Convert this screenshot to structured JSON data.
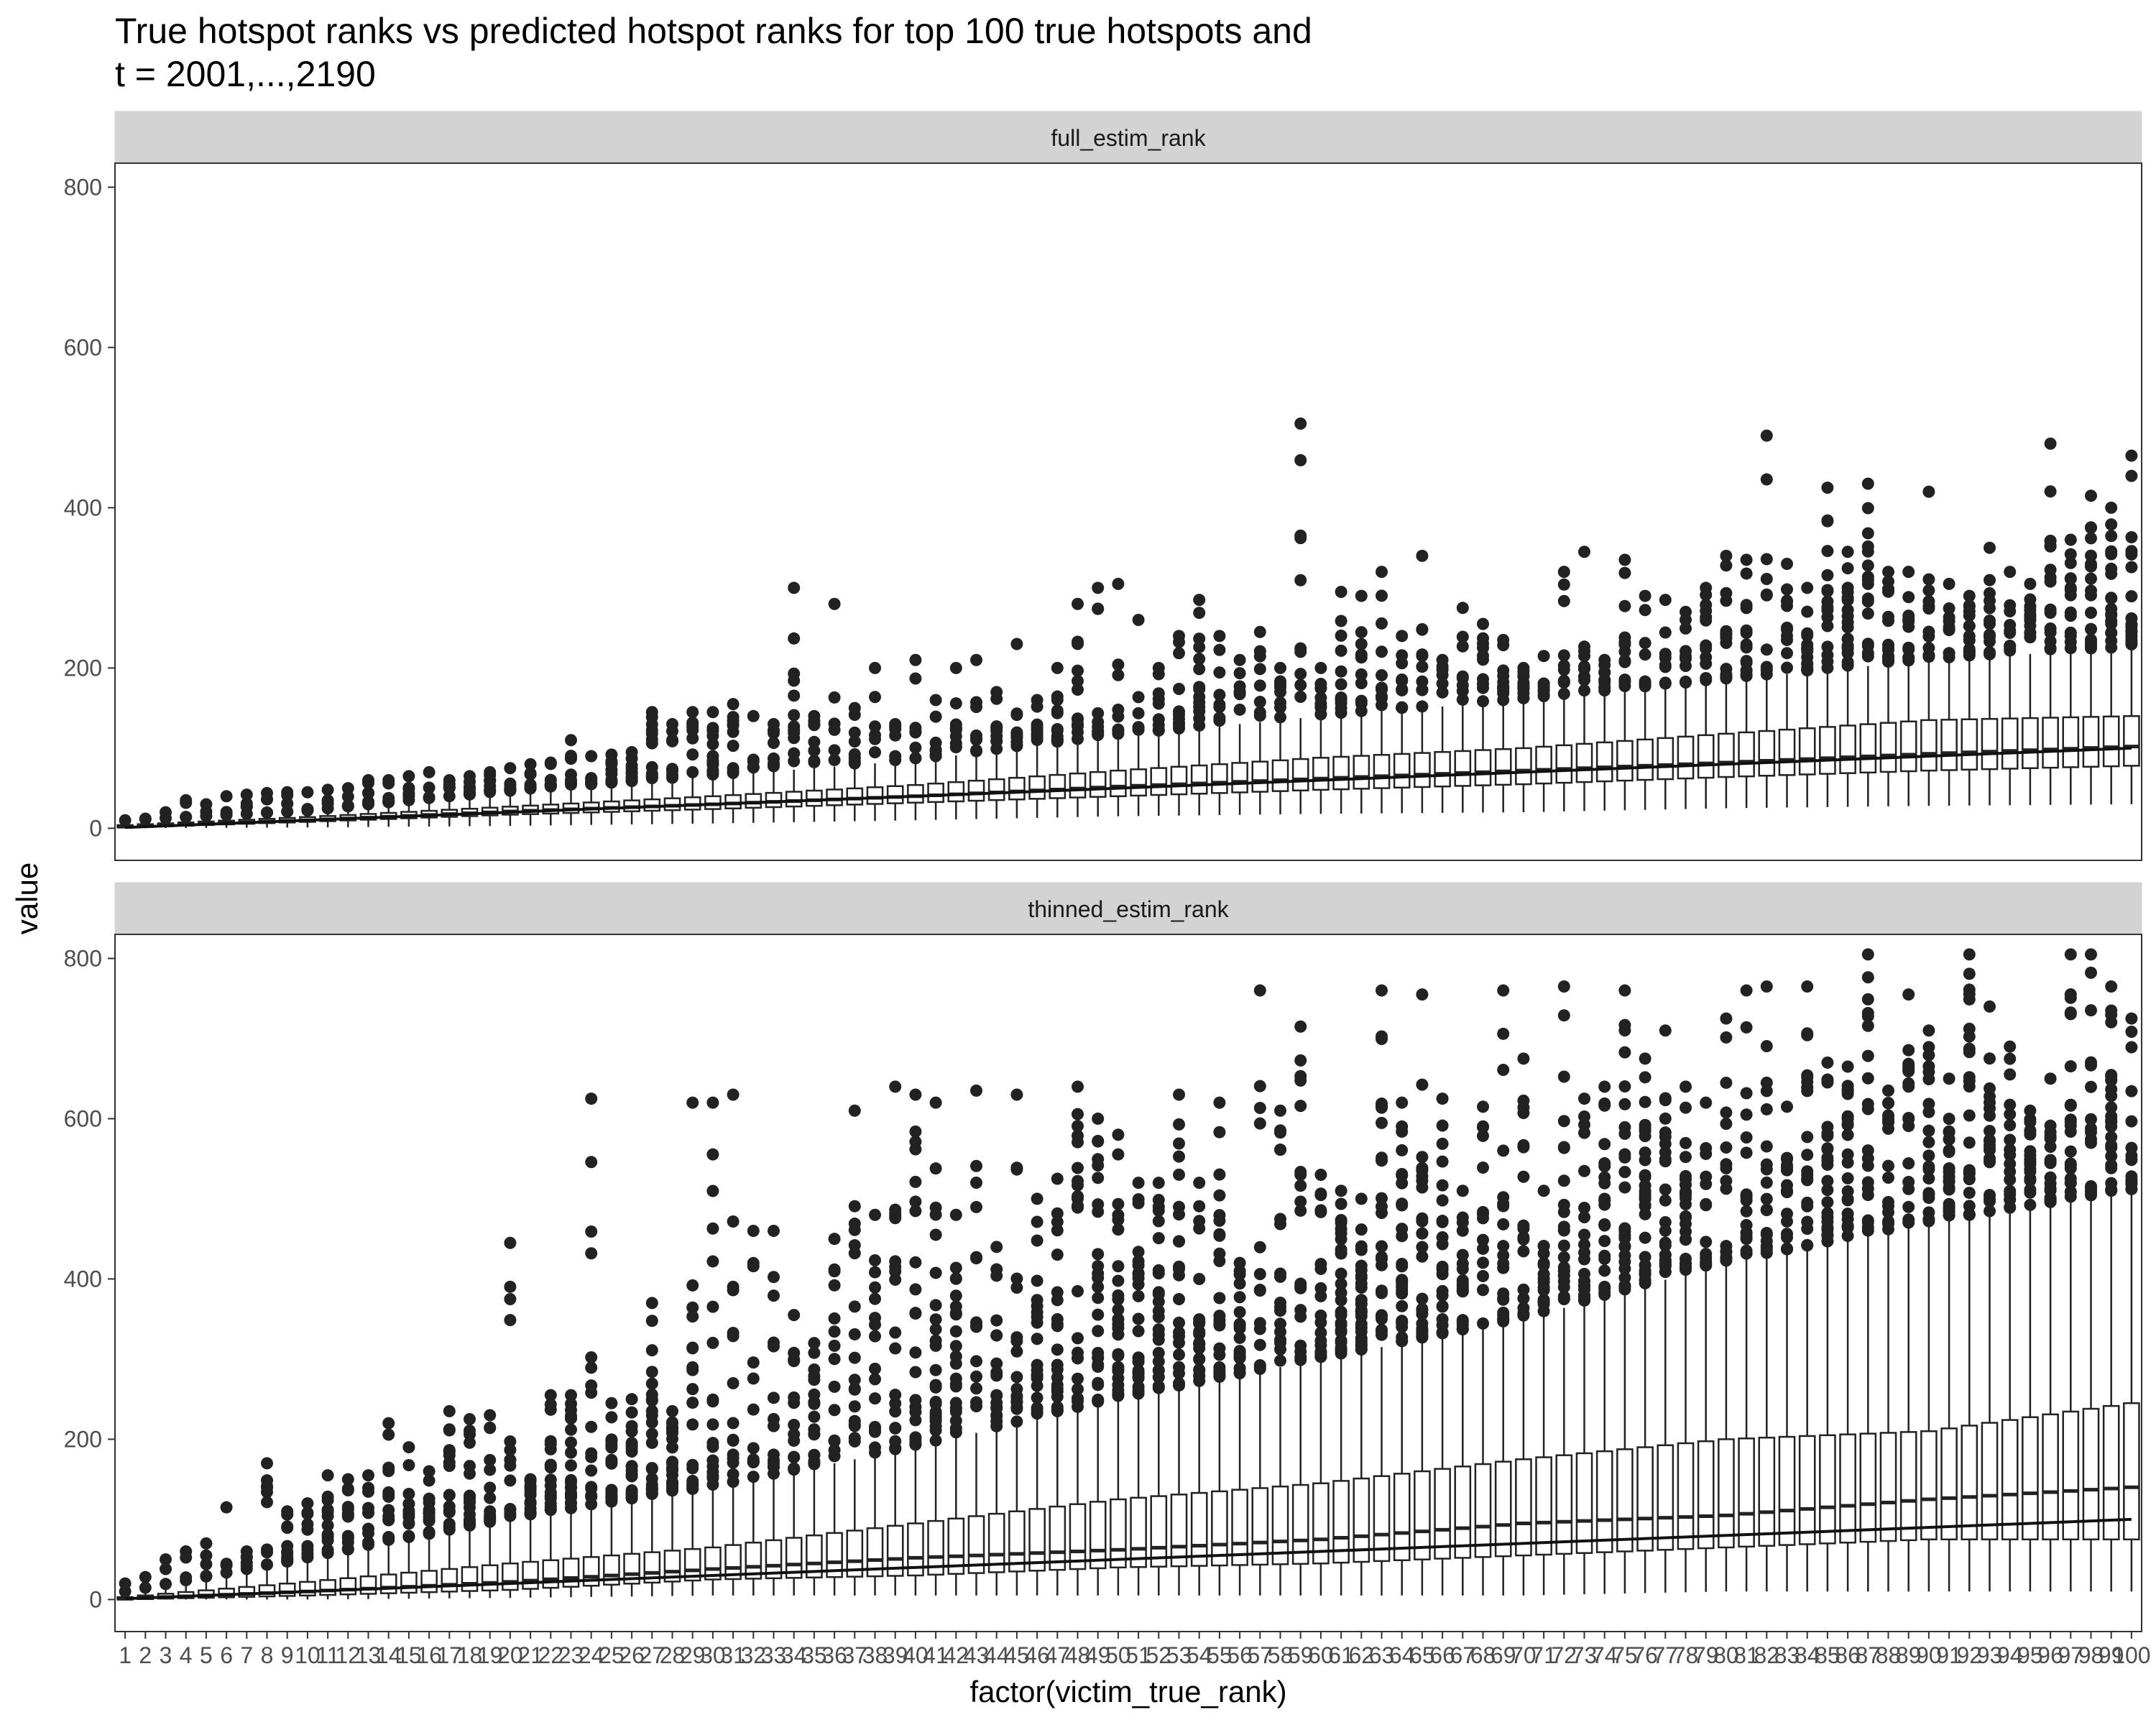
{
  "chart_data": {
    "type": "boxplot",
    "title_line1": "True hotspot ranks vs predicted hotspot ranks for top 100 true hotspots and",
    "title_line2": "t = 2001,...,2190",
    "xlabel": "factor(victim_true_rank)",
    "ylabel": "value",
    "ylim": [
      -40,
      830
    ],
    "yticks": [
      0,
      200,
      400,
      600,
      800
    ],
    "categories_count": 100,
    "reference_line": "y = x",
    "panels": [
      {
        "name": "full_estim_rank",
        "anchors": [
          {
            "rank": 1,
            "q1": 1,
            "median": 2,
            "q3": 4,
            "lo": 0,
            "hi": 8
          },
          {
            "rank": 10,
            "q1": 8,
            "median": 10,
            "q3": 14,
            "lo": 1,
            "hi": 20
          },
          {
            "rank": 20,
            "q1": 17,
            "median": 21,
            "q3": 27,
            "lo": 3,
            "hi": 45
          },
          {
            "rank": 30,
            "q1": 24,
            "median": 30,
            "q3": 40,
            "lo": 6,
            "hi": 65
          },
          {
            "rank": 40,
            "q1": 32,
            "median": 40,
            "q3": 54,
            "lo": 10,
            "hi": 85
          },
          {
            "rank": 50,
            "q1": 40,
            "median": 52,
            "q3": 72,
            "lo": 15,
            "hi": 115
          },
          {
            "rank": 60,
            "q1": 48,
            "median": 62,
            "q3": 88,
            "lo": 18,
            "hi": 140
          },
          {
            "rank": 70,
            "q1": 55,
            "median": 72,
            "q3": 100,
            "lo": 20,
            "hi": 160
          },
          {
            "rank": 80,
            "q1": 64,
            "median": 82,
            "q3": 118,
            "lo": 25,
            "hi": 185
          },
          {
            "rank": 90,
            "q1": 72,
            "median": 93,
            "q3": 135,
            "lo": 28,
            "hi": 210
          },
          {
            "rank": 100,
            "q1": 78,
            "median": 102,
            "q3": 140,
            "lo": 30,
            "hi": 225
          }
        ],
        "outlier_max": [
          10,
          12,
          20,
          35,
          30,
          40,
          42,
          44,
          45,
          45,
          48,
          50,
          60,
          60,
          65,
          70,
          60,
          65,
          70,
          75,
          80,
          82,
          110,
          90,
          92,
          95,
          145,
          130,
          145,
          145,
          155,
          140,
          130,
          300,
          140,
          280,
          150,
          200,
          130,
          210,
          160,
          200,
          210,
          170,
          230,
          160,
          200,
          280,
          300,
          305,
          260,
          200,
          240,
          285,
          240,
          210,
          245,
          200,
          505,
          200,
          295,
          290,
          320,
          240,
          340,
          210,
          275,
          255,
          235,
          200,
          215,
          320,
          345,
          210,
          335,
          290,
          285,
          270,
          300,
          340,
          335,
          490,
          330,
          300,
          425,
          345,
          430,
          320,
          320,
          420,
          305,
          290,
          350,
          320,
          305,
          480,
          360,
          415,
          400,
          465
        ],
        "outlier_counts": [
          1,
          2,
          2,
          4,
          3,
          4,
          5,
          5,
          6,
          4,
          4,
          6,
          6,
          7,
          6,
          4,
          7,
          9,
          9,
          9,
          9,
          9,
          10,
          9,
          12,
          12,
          12,
          10,
          8,
          12,
          10,
          6,
          8,
          12,
          8,
          6,
          8,
          6,
          6,
          8,
          8,
          10,
          8,
          10,
          10,
          10,
          12,
          12,
          10,
          8,
          6,
          10,
          10,
          14,
          8,
          8,
          8,
          8,
          10,
          10,
          12,
          10,
          12,
          14,
          10,
          6,
          8,
          10,
          12,
          12,
          8,
          10,
          10,
          10,
          12,
          8,
          8,
          10,
          12,
          16,
          14,
          10,
          12,
          16,
          16,
          18,
          16,
          16,
          12,
          12,
          10,
          14,
          12,
          10,
          12,
          16,
          14,
          18,
          18,
          18
        ]
      },
      {
        "name": "thinned_estim_rank",
        "anchors": [
          {
            "rank": 1,
            "q1": 0,
            "median": 1,
            "q3": 3,
            "lo": 0,
            "hi": 8
          },
          {
            "rank": 10,
            "q1": 5,
            "median": 10,
            "q3": 22,
            "lo": 0,
            "hi": 50
          },
          {
            "rank": 20,
            "q1": 12,
            "median": 22,
            "q3": 45,
            "lo": 2,
            "hi": 100
          },
          {
            "rank": 30,
            "q1": 25,
            "median": 38,
            "q3": 65,
            "lo": 5,
            "hi": 140
          },
          {
            "rank": 40,
            "q1": 30,
            "median": 52,
            "q3": 95,
            "lo": 5,
            "hi": 190
          },
          {
            "rank": 50,
            "q1": 40,
            "median": 62,
            "q3": 125,
            "lo": 5,
            "hi": 250
          },
          {
            "rank": 60,
            "q1": 45,
            "median": 75,
            "q3": 145,
            "lo": 5,
            "hi": 300
          },
          {
            "rank": 70,
            "q1": 55,
            "median": 95,
            "q3": 175,
            "lo": 5,
            "hi": 350
          },
          {
            "rank": 80,
            "q1": 65,
            "median": 105,
            "q3": 200,
            "lo": 10,
            "hi": 420
          },
          {
            "rank": 90,
            "q1": 75,
            "median": 125,
            "q3": 210,
            "lo": 10,
            "hi": 470
          },
          {
            "rank": 100,
            "q1": 75,
            "median": 140,
            "q3": 245,
            "lo": 10,
            "hi": 510
          }
        ],
        "outlier_max": [
          20,
          28,
          50,
          60,
          70,
          115,
          60,
          170,
          110,
          120,
          155,
          150,
          155,
          220,
          190,
          160,
          235,
          225,
          230,
          445,
          150,
          255,
          255,
          625,
          245,
          250,
          370,
          235,
          620,
          620,
          630,
          460,
          460,
          355,
          320,
          450,
          610,
          480,
          640,
          630,
          620,
          480,
          635,
          440,
          630,
          500,
          525,
          640,
          600,
          580,
          520,
          520,
          630,
          520,
          620,
          420,
          760,
          610,
          715,
          530,
          510,
          500,
          760,
          620,
          755,
          625,
          510,
          615,
          760,
          675,
          510,
          765,
          625,
          640,
          760,
          675,
          710,
          640,
          620,
          725,
          760,
          765,
          615,
          765,
          670,
          665,
          805,
          635,
          755,
          710,
          650,
          805,
          740,
          690,
          610,
          650,
          805,
          805,
          765,
          725
        ],
        "outlier_counts": [
          2,
          2,
          3,
          4,
          5,
          4,
          6,
          10,
          14,
          10,
          12,
          14,
          10,
          14,
          12,
          14,
          16,
          20,
          14,
          14,
          16,
          18,
          22,
          18,
          20,
          20,
          24,
          22,
          20,
          18,
          16,
          12,
          14,
          14,
          18,
          14,
          18,
          16,
          20,
          22,
          24,
          22,
          14,
          18,
          18,
          20,
          22,
          24,
          26,
          28,
          26,
          24,
          22,
          24,
          22,
          20,
          14,
          18,
          20,
          22,
          26,
          28,
          26,
          28,
          26,
          22,
          20,
          14,
          20,
          18,
          16,
          24,
          24,
          22,
          26,
          28,
          26,
          24,
          14,
          16,
          18,
          20,
          16,
          22,
          26,
          22,
          20,
          16,
          18,
          20,
          22,
          24,
          20,
          18,
          18,
          20,
          22,
          16,
          24,
          14
        ]
      }
    ]
  }
}
